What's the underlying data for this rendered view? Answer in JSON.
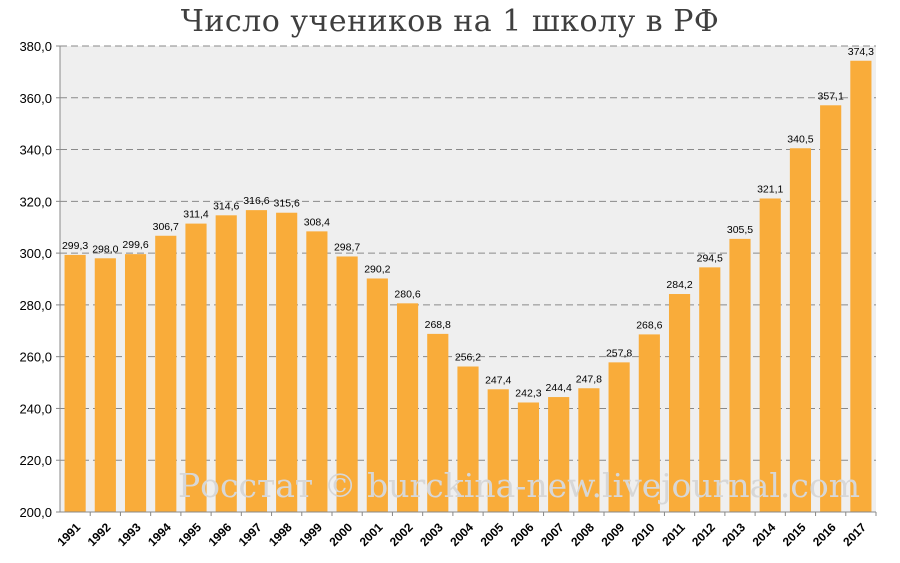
{
  "chart_data": {
    "type": "bar",
    "title": "Число учеников на 1 школу в РФ",
    "xlabel": "",
    "ylabel": "",
    "ylim": [
      200,
      380
    ],
    "yticks": [
      "200,0",
      "220,0",
      "240,0",
      "260,0",
      "280,0",
      "300,0",
      "320,0",
      "340,0",
      "360,0",
      "380,0"
    ],
    "grid": true,
    "legend": "none",
    "bar_color": "#F9AC3A",
    "plot_background": "#EFEFEF",
    "categories": [
      "1991",
      "1992",
      "1993",
      "1994",
      "1995",
      "1996",
      "1997",
      "1998",
      "1999",
      "2000",
      "2001",
      "2002",
      "2003",
      "2004",
      "2005",
      "2006",
      "2007",
      "2008",
      "2009",
      "2010",
      "2011",
      "2012",
      "2013",
      "2014",
      "2015",
      "2016",
      "2017"
    ],
    "values": [
      299.3,
      298.0,
      299.6,
      306.7,
      311.4,
      314.6,
      316.6,
      315.6,
      308.4,
      298.7,
      290.2,
      280.6,
      268.8,
      256.2,
      247.4,
      242.3,
      244.4,
      247.8,
      257.8,
      268.6,
      284.2,
      294.5,
      305.5,
      321.1,
      340.5,
      357.1,
      374.3
    ],
    "data_labels": [
      "299,3",
      "298,0",
      "299,6",
      "306,7",
      "311,4",
      "314,6",
      "316,6",
      "315,6",
      "308,4",
      "298,7",
      "290,2",
      "280,6",
      "268,8",
      "256,2",
      "247,4",
      "242,3",
      "244,4",
      "247,8",
      "257,8",
      "268,6",
      "284,2",
      "294,5",
      "305,5",
      "321,1",
      "340,5",
      "357,1",
      "374,3"
    ],
    "watermark": "Росстат © burckina-new.livejournal.com"
  }
}
